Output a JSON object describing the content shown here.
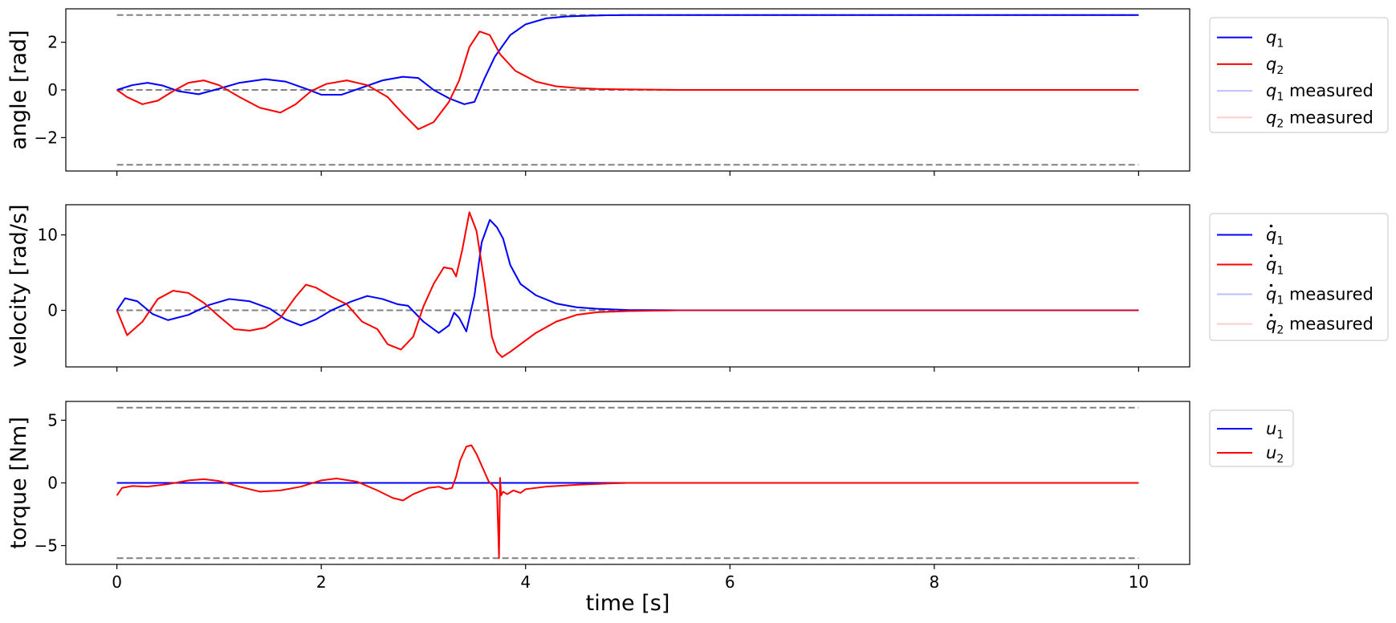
{
  "chart_data": [
    {
      "type": "line",
      "ylabel": "angle [rad]",
      "xlim": [
        -0.5,
        10.5
      ],
      "ylim": [
        -3.4,
        3.4
      ],
      "yticks": [
        -2,
        0,
        2
      ],
      "ytick_labels": [
        "−2",
        "0",
        "2"
      ],
      "show_xtick_labels": false,
      "legend_placement": "outside-right-top",
      "reference_lines": [
        {
          "y": 3.14,
          "x": [
            0,
            10
          ],
          "color": "#808080",
          "style": "dashed"
        },
        {
          "y": 0,
          "x": [
            0,
            10
          ],
          "color": "#808080",
          "style": "dashed"
        },
        {
          "y": -3.14,
          "x": [
            0,
            10
          ],
          "color": "#808080",
          "style": "dashed"
        }
      ],
      "series": [
        {
          "name": "q",
          "subscript": "1",
          "dot": false,
          "suffix": "",
          "color": "#0000ff",
          "opacity": 1,
          "x": [
            0,
            0.15,
            0.3,
            0.45,
            0.6,
            0.8,
            1.0,
            1.2,
            1.45,
            1.65,
            1.85,
            2.0,
            2.2,
            2.4,
            2.6,
            2.8,
            2.95,
            3.1,
            3.25,
            3.4,
            3.5,
            3.6,
            3.7,
            3.85,
            4.0,
            4.2,
            4.4,
            4.6,
            4.8,
            5.0,
            5.5,
            6.0,
            7.0,
            8.0,
            9.0,
            10.0
          ],
          "y": [
            0,
            0.2,
            0.3,
            0.18,
            -0.05,
            -0.18,
            0.05,
            0.3,
            0.45,
            0.35,
            0.05,
            -0.2,
            -0.2,
            0.1,
            0.4,
            0.55,
            0.5,
            0.0,
            -0.35,
            -0.6,
            -0.5,
            0.5,
            1.4,
            2.3,
            2.75,
            3.0,
            3.08,
            3.11,
            3.13,
            3.14,
            3.14,
            3.14,
            3.14,
            3.14,
            3.14,
            3.14
          ]
        },
        {
          "name": "q",
          "subscript": "2",
          "dot": false,
          "suffix": "",
          "color": "#ff0000",
          "opacity": 1,
          "x": [
            0,
            0.1,
            0.25,
            0.4,
            0.55,
            0.7,
            0.85,
            1.0,
            1.2,
            1.4,
            1.6,
            1.75,
            1.9,
            2.05,
            2.25,
            2.45,
            2.65,
            2.8,
            2.95,
            3.1,
            3.25,
            3.35,
            3.45,
            3.55,
            3.65,
            3.75,
            3.9,
            4.1,
            4.3,
            4.5,
            4.7,
            5.0,
            5.5,
            6.0,
            7.0,
            8.0,
            9.0,
            10.0
          ],
          "y": [
            0,
            -0.3,
            -0.6,
            -0.45,
            -0.05,
            0.3,
            0.4,
            0.2,
            -0.3,
            -0.75,
            -0.95,
            -0.6,
            -0.05,
            0.25,
            0.4,
            0.2,
            -0.3,
            -1.0,
            -1.65,
            -1.35,
            -0.5,
            0.4,
            1.8,
            2.45,
            2.3,
            1.5,
            0.8,
            0.35,
            0.15,
            0.08,
            0.04,
            0.02,
            0.0,
            0.0,
            0.0,
            0.0,
            0.0,
            0.0
          ]
        },
        {
          "name": "q",
          "subscript": "1",
          "dot": false,
          "suffix": " measured",
          "color": "#0000ff",
          "opacity": 0.25,
          "x": [
            0,
            0.15,
            0.3,
            0.45,
            0.6,
            0.8,
            1.0,
            1.2,
            1.45,
            1.65,
            1.85,
            2.0,
            2.2,
            2.4,
            2.6,
            2.8,
            2.95,
            3.1,
            3.25,
            3.4,
            3.5,
            3.6,
            3.7,
            3.85,
            4.0,
            4.2,
            4.4,
            4.6,
            4.8,
            5.0,
            5.5,
            6.0,
            7.0,
            8.0,
            9.0,
            10.0
          ],
          "y": [
            0,
            0.2,
            0.3,
            0.18,
            -0.05,
            -0.18,
            0.05,
            0.3,
            0.45,
            0.35,
            0.05,
            -0.2,
            -0.2,
            0.1,
            0.4,
            0.55,
            0.5,
            0.0,
            -0.35,
            -0.6,
            -0.5,
            0.5,
            1.4,
            2.3,
            2.75,
            3.0,
            3.08,
            3.11,
            3.13,
            3.14,
            3.14,
            3.14,
            3.14,
            3.14,
            3.14,
            3.14
          ]
        },
        {
          "name": "q",
          "subscript": "2",
          "dot": false,
          "suffix": " measured",
          "color": "#ff0000",
          "opacity": 0.2,
          "x": [
            0,
            0.1,
            0.25,
            0.4,
            0.55,
            0.7,
            0.85,
            1.0,
            1.2,
            1.4,
            1.6,
            1.75,
            1.9,
            2.05,
            2.25,
            2.45,
            2.65,
            2.8,
            2.95,
            3.1,
            3.25,
            3.35,
            3.45,
            3.55,
            3.65,
            3.75,
            3.9,
            4.1,
            4.3,
            4.5,
            4.7,
            5.0,
            5.5,
            6.0,
            7.0,
            8.0,
            9.0,
            10.0
          ],
          "y": [
            0,
            -0.3,
            -0.6,
            -0.45,
            -0.05,
            0.3,
            0.4,
            0.2,
            -0.3,
            -0.75,
            -0.95,
            -0.6,
            -0.05,
            0.25,
            0.4,
            0.2,
            -0.3,
            -1.0,
            -1.65,
            -1.35,
            -0.5,
            0.4,
            1.8,
            2.45,
            2.3,
            1.5,
            0.8,
            0.35,
            0.15,
            0.08,
            0.04,
            0.02,
            0.0,
            0.0,
            0.0,
            0.0,
            0.0,
            0.0
          ]
        }
      ]
    },
    {
      "type": "line",
      "ylabel": "velocity [rad/s]",
      "xlim": [
        -0.5,
        10.5
      ],
      "ylim": [
        -7.5,
        14.0
      ],
      "yticks": [
        0,
        10
      ],
      "ytick_labels": [
        "0",
        "10"
      ],
      "show_xtick_labels": false,
      "legend_placement": "outside-right-top",
      "reference_lines": [
        {
          "y": 0,
          "x": [
            0,
            10
          ],
          "color": "#808080",
          "style": "dashed"
        }
      ],
      "series": [
        {
          "name": "q",
          "subscript": "1",
          "dot": true,
          "suffix": "",
          "color": "#0000ff",
          "opacity": 1,
          "x": [
            0,
            0.08,
            0.2,
            0.35,
            0.5,
            0.7,
            0.9,
            1.1,
            1.3,
            1.5,
            1.65,
            1.8,
            1.95,
            2.1,
            2.3,
            2.45,
            2.6,
            2.75,
            2.85,
            3.0,
            3.15,
            3.25,
            3.3,
            3.35,
            3.42,
            3.5,
            3.57,
            3.65,
            3.72,
            3.78,
            3.85,
            3.95,
            4.1,
            4.3,
            4.5,
            4.7,
            5.0,
            5.5,
            6.0,
            8.0,
            10.0
          ],
          "y": [
            0,
            1.6,
            1.2,
            -0.5,
            -1.3,
            -0.6,
            0.7,
            1.5,
            1.2,
            0.2,
            -1.2,
            -2.0,
            -1.2,
            0.0,
            1.2,
            1.9,
            1.5,
            0.8,
            0.6,
            -1.5,
            -3.0,
            -2.0,
            -0.3,
            -1.0,
            -2.8,
            2.0,
            9.0,
            12.0,
            11.0,
            9.5,
            6.0,
            3.5,
            2.0,
            0.9,
            0.4,
            0.2,
            0.05,
            0.0,
            0.0,
            0.0,
            0.0
          ]
        },
        {
          "name": "q",
          "subscript": "1",
          "dot": true,
          "suffix": "",
          "color": "#ff0000",
          "opacity": 1,
          "x": [
            0,
            0.1,
            0.25,
            0.4,
            0.55,
            0.7,
            0.85,
            1.0,
            1.15,
            1.3,
            1.45,
            1.6,
            1.75,
            1.85,
            1.95,
            2.1,
            2.25,
            2.4,
            2.55,
            2.65,
            2.78,
            2.9,
            3.0,
            3.1,
            3.2,
            3.28,
            3.32,
            3.38,
            3.45,
            3.52,
            3.6,
            3.67,
            3.72,
            3.77,
            3.85,
            3.95,
            4.1,
            4.3,
            4.5,
            4.7,
            5.0,
            5.5,
            6.0,
            8.0,
            10.0
          ],
          "y": [
            0,
            -3.3,
            -1.5,
            1.5,
            2.6,
            2.3,
            1.0,
            -0.8,
            -2.5,
            -2.7,
            -2.3,
            -1.0,
            1.8,
            3.4,
            3.0,
            1.8,
            0.8,
            -1.5,
            -2.5,
            -4.5,
            -5.2,
            -3.5,
            0.5,
            3.5,
            5.7,
            5.5,
            4.5,
            8.0,
            13.0,
            10.5,
            3.5,
            -3.5,
            -5.5,
            -6.2,
            -5.5,
            -4.5,
            -3.0,
            -1.5,
            -0.6,
            -0.25,
            -0.1,
            0.0,
            0.0,
            0.0,
            0.0
          ]
        },
        {
          "name": "q",
          "subscript": "1",
          "dot": true,
          "suffix": " measured",
          "color": "#0000ff",
          "opacity": 0.25,
          "x": [
            0,
            0.08,
            0.2,
            0.35,
            0.5,
            0.7,
            0.9,
            1.1,
            1.3,
            1.5,
            1.65,
            1.8,
            1.95,
            2.1,
            2.3,
            2.45,
            2.6,
            2.75,
            2.85,
            3.0,
            3.15,
            3.25,
            3.3,
            3.35,
            3.42,
            3.5,
            3.57,
            3.65,
            3.72,
            3.78,
            3.85,
            3.95,
            4.1,
            4.3,
            4.5,
            4.7,
            5.0,
            5.5,
            6.0,
            8.0,
            10.0
          ],
          "y": [
            0,
            1.6,
            1.2,
            -0.5,
            -1.3,
            -0.6,
            0.7,
            1.5,
            1.2,
            0.2,
            -1.2,
            -2.0,
            -1.2,
            0.0,
            1.2,
            1.9,
            1.5,
            0.8,
            0.6,
            -1.5,
            -3.0,
            -2.0,
            -0.3,
            -1.0,
            -2.8,
            2.0,
            9.0,
            12.0,
            11.0,
            9.5,
            6.0,
            3.5,
            2.0,
            0.9,
            0.4,
            0.2,
            0.05,
            0.0,
            0.0,
            0.0,
            0.0
          ]
        },
        {
          "name": "q",
          "subscript": "2",
          "dot": true,
          "suffix": " measured",
          "color": "#ff0000",
          "opacity": 0.2,
          "x": [
            0,
            0.1,
            0.25,
            0.4,
            0.55,
            0.7,
            0.85,
            1.0,
            1.15,
            1.3,
            1.45,
            1.6,
            1.75,
            1.85,
            1.95,
            2.1,
            2.25,
            2.4,
            2.55,
            2.65,
            2.78,
            2.9,
            3.0,
            3.1,
            3.2,
            3.28,
            3.32,
            3.38,
            3.45,
            3.52,
            3.6,
            3.67,
            3.72,
            3.77,
            3.85,
            3.95,
            4.1,
            4.3,
            4.5,
            4.7,
            5.0,
            5.5,
            6.0,
            8.0,
            10.0
          ],
          "y": [
            0,
            -3.3,
            -1.5,
            1.5,
            2.6,
            2.3,
            1.0,
            -0.8,
            -2.5,
            -2.7,
            -2.3,
            -1.0,
            1.8,
            3.4,
            3.0,
            1.8,
            0.8,
            -1.5,
            -2.5,
            -4.5,
            -5.2,
            -3.5,
            0.5,
            3.5,
            5.7,
            5.5,
            4.5,
            8.0,
            13.0,
            10.5,
            3.5,
            -3.5,
            -5.5,
            -6.2,
            -5.5,
            -4.5,
            -3.0,
            -1.5,
            -0.6,
            -0.25,
            -0.1,
            0.0,
            0.0,
            0.0,
            0.0
          ]
        }
      ]
    },
    {
      "type": "line",
      "ylabel": "torque [Nm]",
      "xlabel": "time [s]",
      "xlim": [
        -0.5,
        10.5
      ],
      "ylim": [
        -6.5,
        6.5
      ],
      "yticks": [
        -5,
        0,
        5
      ],
      "ytick_labels": [
        "−5",
        "0",
        "5"
      ],
      "xticks": [
        0,
        2,
        4,
        6,
        8,
        10
      ],
      "xtick_labels": [
        "0",
        "2",
        "4",
        "6",
        "8",
        "10"
      ],
      "show_xtick_labels": true,
      "legend_placement": "outside-right-top",
      "reference_lines": [
        {
          "y": 6,
          "x": [
            0,
            10
          ],
          "color": "#808080",
          "style": "dashed"
        },
        {
          "y": 0,
          "x": [
            0,
            10
          ],
          "color": "#808080",
          "style": "dashed"
        },
        {
          "y": -6,
          "x": [
            0,
            10
          ],
          "color": "#808080",
          "style": "dashed"
        }
      ],
      "series": [
        {
          "name": "u",
          "subscript": "1",
          "dot": false,
          "suffix": "",
          "color": "#0000ff",
          "opacity": 1,
          "x": [
            0,
            10
          ],
          "y": [
            0,
            0
          ]
        },
        {
          "name": "u",
          "subscript": "2",
          "dot": false,
          "suffix": "",
          "color": "#ff0000",
          "opacity": 1,
          "x": [
            0,
            0.05,
            0.15,
            0.3,
            0.5,
            0.7,
            0.85,
            1.0,
            1.2,
            1.4,
            1.6,
            1.8,
            2.0,
            2.15,
            2.35,
            2.55,
            2.7,
            2.8,
            2.9,
            3.05,
            3.15,
            3.22,
            3.28,
            3.32,
            3.36,
            3.42,
            3.47,
            3.52,
            3.58,
            3.64,
            3.68,
            3.72,
            3.74,
            3.75,
            3.76,
            3.78,
            3.82,
            3.88,
            3.95,
            4.0,
            4.2,
            4.5,
            4.8,
            5.0,
            6.0,
            8.0,
            10.0
          ],
          "y": [
            -1.0,
            -0.4,
            -0.25,
            -0.3,
            -0.1,
            0.2,
            0.3,
            0.15,
            -0.3,
            -0.7,
            -0.6,
            -0.3,
            0.2,
            0.35,
            0.1,
            -0.6,
            -1.2,
            -1.4,
            -0.9,
            -0.4,
            -0.3,
            -0.5,
            -0.4,
            0.5,
            1.8,
            2.9,
            3.0,
            2.3,
            1.2,
            0.1,
            -0.2,
            -0.6,
            -6.0,
            0.4,
            -1.0,
            -0.7,
            -0.9,
            -0.6,
            -0.8,
            -0.5,
            -0.3,
            -0.15,
            -0.05,
            0.0,
            0.0,
            0.0,
            0.0
          ]
        }
      ]
    }
  ]
}
